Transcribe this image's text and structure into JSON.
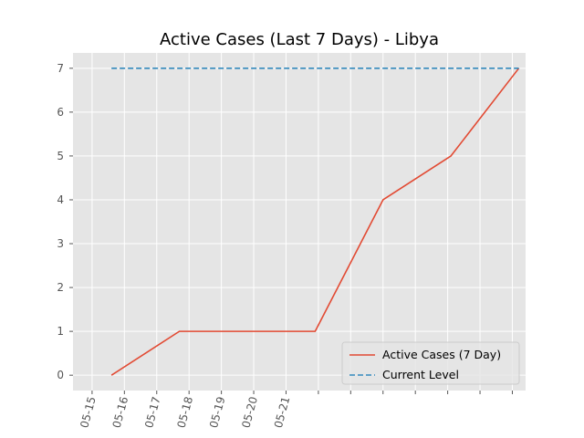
{
  "chart_data": {
    "type": "line",
    "title": "Active Cases (Last 7 Days) - Libya",
    "xlabel": "",
    "ylabel": "",
    "x_tick_labels": [
      "05-15",
      "05-16",
      "05-17",
      "05-18",
      "05-19",
      "05-20",
      "05-21"
    ],
    "y_ticks": [
      0,
      1,
      2,
      3,
      4,
      5,
      6,
      7
    ],
    "ylim": [
      -0.35,
      7.35
    ],
    "xlim": [
      -0.59,
      13.41
    ],
    "grid": true,
    "legend_position": "lower-right",
    "series": [
      {
        "name": "Active Cases (7 Day)",
        "style": "solid",
        "color": "#E24A33",
        "x": [
          0.6,
          2.7,
          4.8,
          6.9,
          9.0,
          11.1,
          13.2
        ],
        "values": [
          0,
          1,
          1,
          1,
          4,
          5,
          7
        ]
      },
      {
        "name": "Current Level",
        "style": "dashed",
        "color": "#348ABD",
        "x": [
          0.6,
          13.2
        ],
        "values": [
          7,
          7
        ]
      }
    ],
    "colors": {
      "plot_background": "#E5E5E5",
      "grid": "#FFFFFF",
      "tick_text": "#555555"
    }
  }
}
